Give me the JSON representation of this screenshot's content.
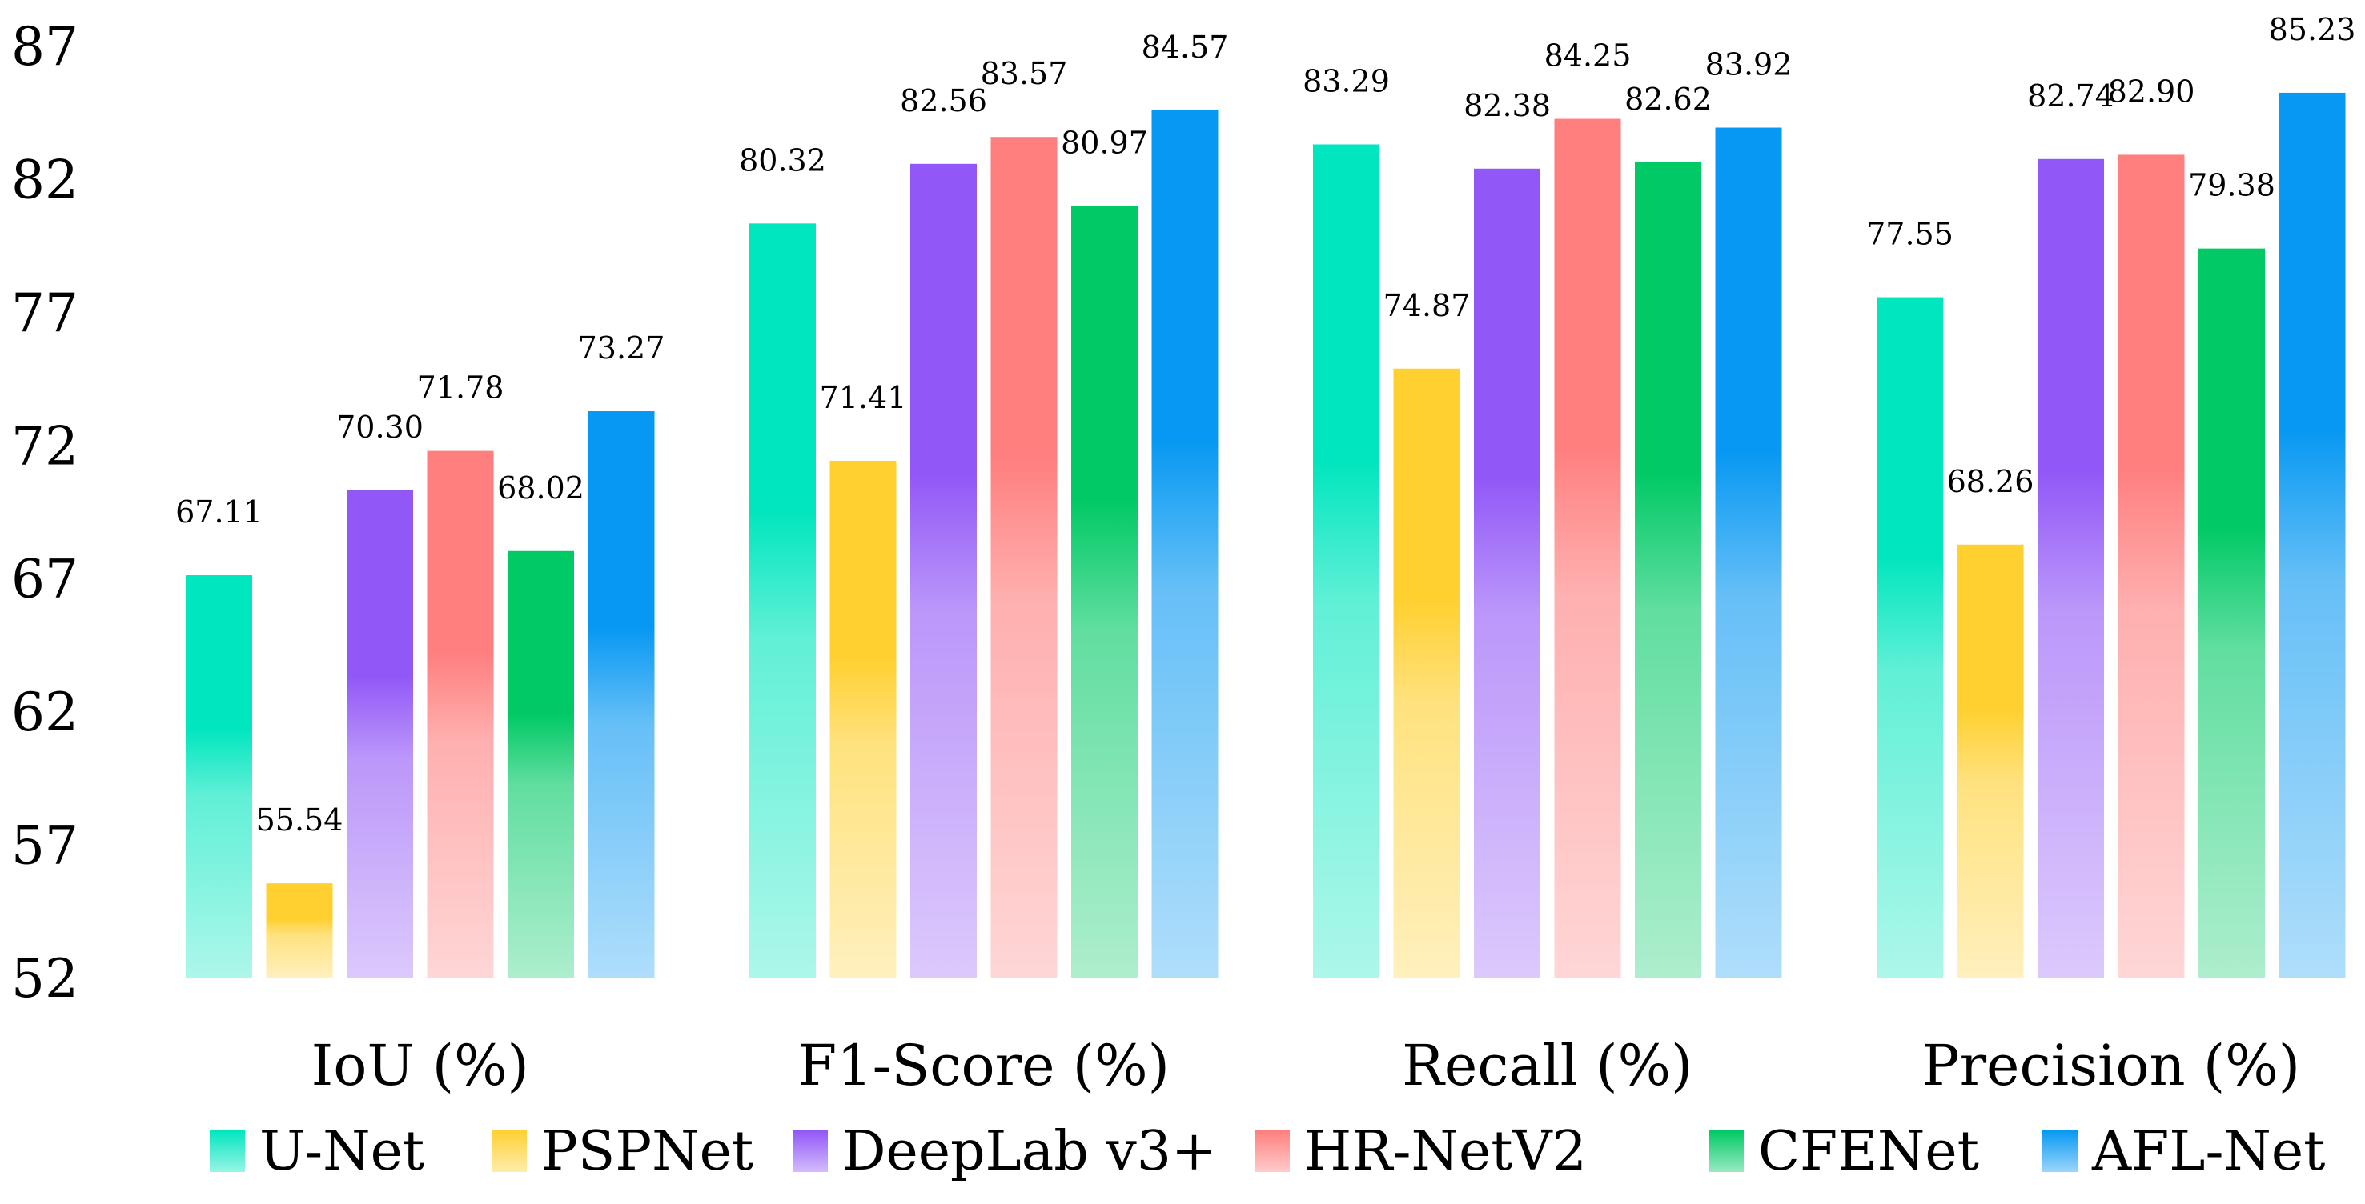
{
  "chart_data": {
    "type": "bar",
    "title": "",
    "xlabel": "",
    "ylabel": "",
    "ylim": [
      52,
      87
    ],
    "yticks": [
      52,
      57,
      62,
      67,
      72,
      77,
      82,
      87
    ],
    "grid": false,
    "legend_position": "bottom",
    "categories": [
      "IoU (%)",
      "F1-Score (%)",
      "Recall (%)",
      "Precision (%)"
    ],
    "series": [
      {
        "name": "U-Net",
        "color": "#00E6BE",
        "values": [
          67.11,
          80.32,
          83.29,
          77.55
        ],
        "labels": [
          "67.11",
          "80.32",
          "83.29",
          "77.55"
        ]
      },
      {
        "name": "PSPNet",
        "color": "#FFD030",
        "values": [
          55.54,
          71.41,
          74.87,
          68.26
        ],
        "labels": [
          "55.54",
          "71.41",
          "74.87",
          "68.26"
        ]
      },
      {
        "name": "DeepLab v3+",
        "color": "#9157F7",
        "values": [
          70.3,
          82.56,
          82.38,
          82.74
        ],
        "labels": [
          "70.30",
          "82.56",
          "82.38",
          "82.74"
        ]
      },
      {
        "name": "HR-NetV2",
        "color": "#FF7E7E",
        "values": [
          71.78,
          83.57,
          84.25,
          82.9
        ],
        "labels": [
          "71.78",
          "83.57",
          "84.25",
          "82.90"
        ]
      },
      {
        "name": "CFENet",
        "color": "#00C965",
        "values": [
          68.02,
          80.97,
          82.62,
          79.38
        ],
        "labels": [
          "68.02",
          "80.97",
          "82.62",
          "79.38"
        ]
      },
      {
        "name": "AFL-Net",
        "color": "#0698F2",
        "values": [
          73.27,
          84.57,
          83.92,
          85.23
        ],
        "labels": [
          "73.27",
          "84.57",
          "83.92",
          "85.23"
        ]
      }
    ]
  }
}
